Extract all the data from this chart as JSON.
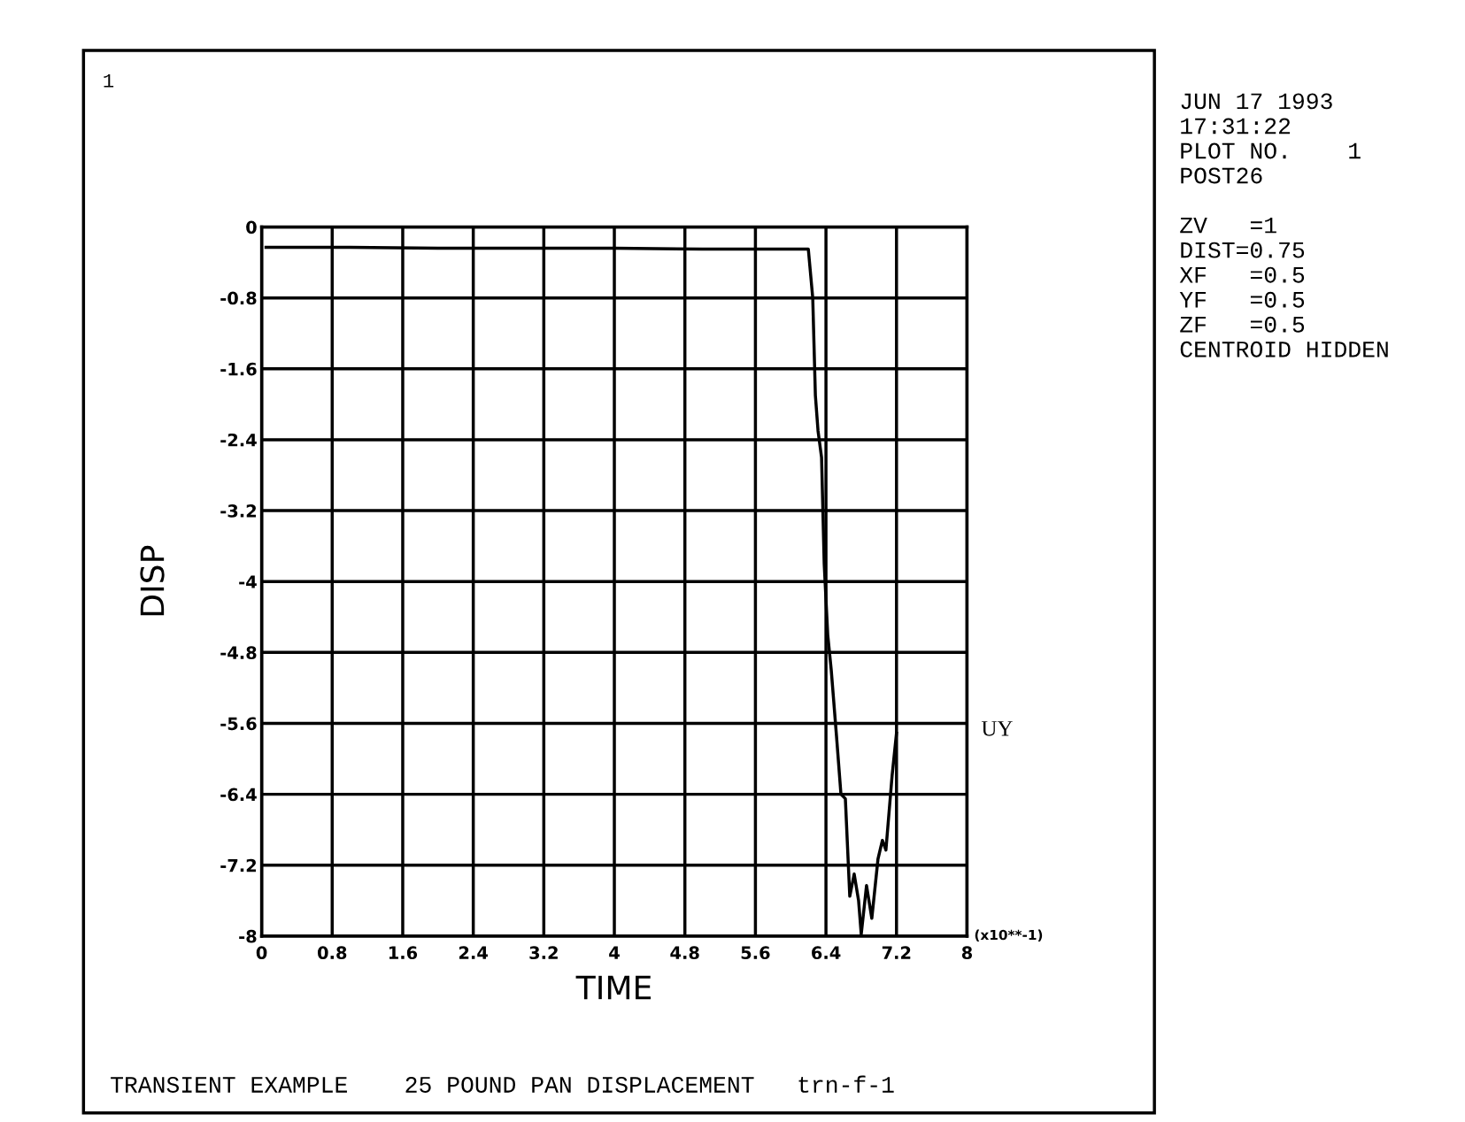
{
  "chart_data": {
    "type": "line",
    "xlabel": "TIME",
    "ylabel": "DISP",
    "xlim": [
      0,
      8
    ],
    "ylim": [
      -8,
      0
    ],
    "xticks": [
      0,
      0.8,
      1.6,
      2.4,
      3.2,
      4,
      4.8,
      5.6,
      6.4,
      7.2,
      8
    ],
    "yticks": [
      0,
      -0.8,
      -1.6,
      -2.4,
      -3.2,
      -4,
      -4.8,
      -5.6,
      -6.4,
      -7.2,
      -8
    ],
    "grid": true,
    "series": [
      {
        "name": "UY",
        "color": "#000000",
        "x": [
          0.05,
          1.0,
          2.0,
          3.0,
          4.0,
          5.0,
          6.0,
          6.2,
          6.25,
          6.28,
          6.31,
          6.35,
          6.38,
          6.42,
          6.46,
          6.52,
          6.57,
          6.62,
          6.67,
          6.72,
          6.77,
          6.8,
          6.86,
          6.92,
          6.99,
          7.04,
          7.08,
          7.15,
          7.2
        ],
        "values": [
          -0.23,
          -0.23,
          -0.24,
          -0.24,
          -0.24,
          -0.25,
          -0.25,
          -0.25,
          -0.8,
          -1.9,
          -2.3,
          -2.6,
          -3.8,
          -4.6,
          -5.0,
          -5.75,
          -6.4,
          -6.45,
          -7.55,
          -7.3,
          -7.6,
          -7.98,
          -7.43,
          -7.8,
          -7.13,
          -6.92,
          -7.03,
          -6.19,
          -5.71
        ]
      }
    ],
    "annotations": [
      "1",
      "JUN 17 1993\n17:31:22\nPLOT NO.    1\nPOST26\n\nZV   =1\nDIST=0.75\nXF   =0.5\nYF   =0.5\nZF   =0.5\nCENTROID HIDDEN",
      "(x10**-1)",
      "TRANSIENT EXAMPLE    25 POUND PAN DISPLACEMENT   trn-f-1"
    ]
  }
}
